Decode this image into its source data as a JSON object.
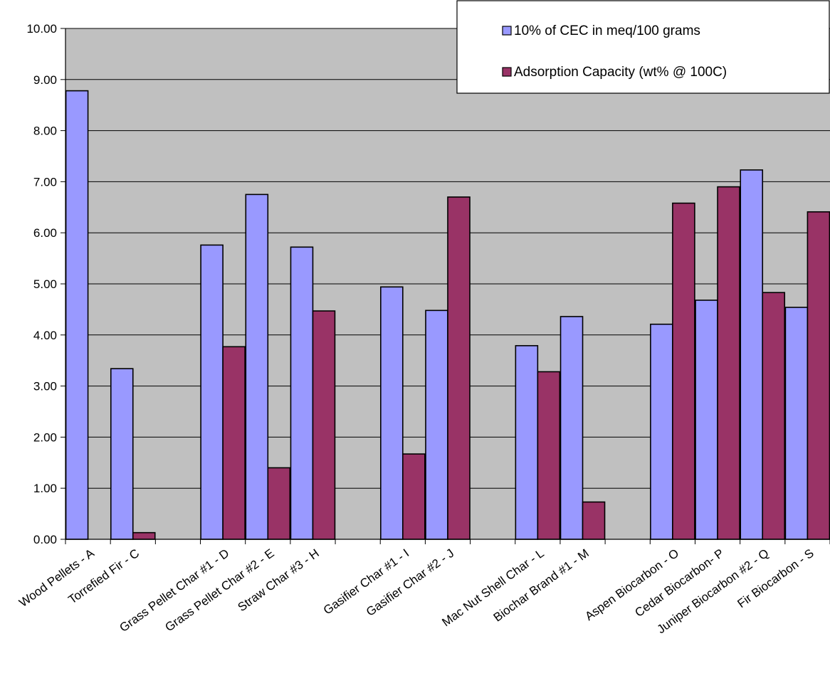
{
  "chart_data": {
    "type": "bar",
    "title": "",
    "xlabel": "",
    "ylabel": "",
    "ylim": [
      0,
      10
    ],
    "yticks": [
      "0.00",
      "1.00",
      "2.00",
      "3.00",
      "4.00",
      "5.00",
      "6.00",
      "7.00",
      "8.00",
      "9.00",
      "10.00"
    ],
    "grid": true,
    "legend_position": "top-right",
    "plot_background": "#c0c0c0",
    "categories": [
      "Wood Pellets - A",
      "Torrefied Fir - C",
      "",
      "Grass Pellet Char #1 - D",
      "Grass Pellet Char #2 - E",
      "Straw Char #3 - H",
      "",
      "Gasifier Char #1 - I",
      "Gasifier Char #2 - J",
      "",
      "Mac Nut Shell Char - L",
      "Biochar Brand #1 - M",
      "",
      "Aspen Biocarbon - O",
      "Cedar Biocarbon- P",
      "Juniper Biocarbon #2 - Q",
      "Fir Biocarbon - S"
    ],
    "series": [
      {
        "name": "10% of CEC in meq/100 grams",
        "color": "#9999ff",
        "values": [
          8.78,
          3.34,
          null,
          5.76,
          6.75,
          5.72,
          null,
          4.94,
          4.48,
          null,
          3.79,
          4.36,
          null,
          4.21,
          4.68,
          7.23,
          4.54
        ]
      },
      {
        "name": "Adsorption Capacity (wt% @ 100C)",
        "color": "#993366",
        "values": [
          null,
          0.13,
          null,
          3.77,
          1.4,
          4.47,
          null,
          1.67,
          6.7,
          null,
          3.28,
          0.73,
          null,
          6.58,
          6.9,
          4.83,
          6.41
        ]
      }
    ]
  }
}
